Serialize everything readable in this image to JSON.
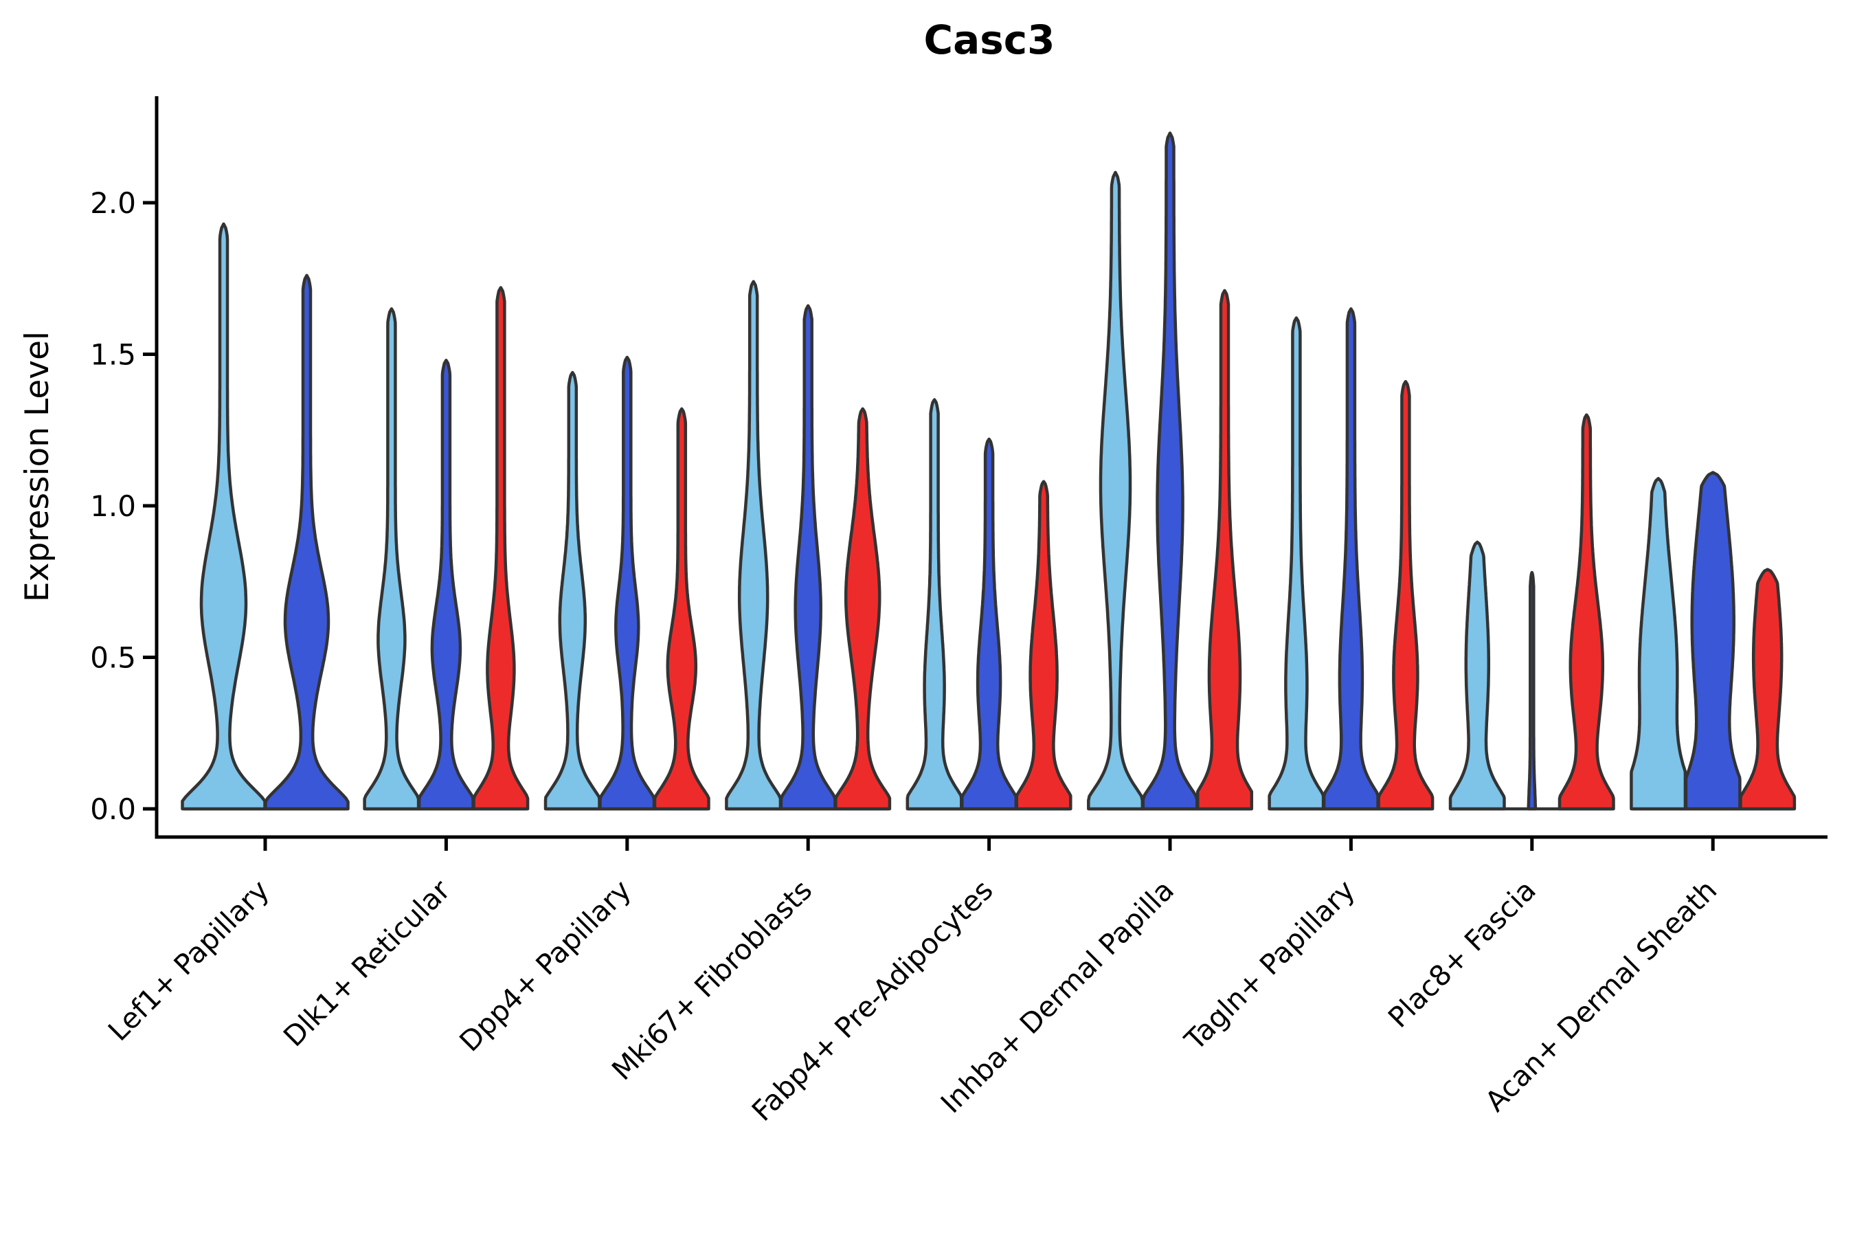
{
  "title": "Casc3",
  "chart_data": {
    "type": "violin",
    "title": "Casc3",
    "xlabel": "",
    "ylabel": "Expression Level",
    "ylim": [
      0,
      2.36
    ],
    "yticks": [
      0.0,
      0.5,
      1.0,
      1.5,
      2.0
    ],
    "ytick_labels": [
      "0.0",
      "0.5",
      "1.0",
      "1.5",
      "2.0"
    ],
    "grid": false,
    "legend_position": "none",
    "categories": [
      "Lef1+ Papillary",
      "Dlk1+ Reticular",
      "Dpp4+ Papillary",
      "Mki67+ Fibroblasts",
      "Fabp4+ Pre-Adipocytes",
      "Inhba+ Dermal Papilla",
      "Tagln+ Papillary",
      "Plac8+ Fascia",
      "Acan+ Dermal Sheath"
    ],
    "splits": [
      {
        "name": "light-blue-split",
        "color": "#7EC3E8"
      },
      {
        "name": "dark-blue-split",
        "color": "#3A57D8"
      },
      {
        "name": "red-split",
        "color": "#EE2B2B"
      }
    ],
    "outline_color": "#333333",
    "axis_color": "#000000",
    "violins": [
      {
        "category": "Lef1+ Papillary",
        "cells": [
          {
            "split": 0,
            "max": 1.93,
            "bulge_center": 0.68,
            "bulge_halfwidth": 27,
            "bulge_spread": 0.2,
            "base_halfwidth": 60
          },
          {
            "split": 1,
            "max": 1.76,
            "bulge_center": 0.62,
            "bulge_halfwidth": 26,
            "bulge_spread": 0.17,
            "base_halfwidth": 60
          }
        ]
      },
      {
        "category": "Dlk1+ Reticular",
        "cells": [
          {
            "split": 0,
            "max": 1.65,
            "bulge_center": 0.56,
            "bulge_halfwidth": 14,
            "bulge_spread": 0.15,
            "base_halfwidth": 40
          },
          {
            "split": 1,
            "max": 1.48,
            "bulge_center": 0.53,
            "bulge_halfwidth": 15,
            "bulge_spread": 0.14,
            "base_halfwidth": 40
          },
          {
            "split": 2,
            "max": 1.72,
            "bulge_center": 0.46,
            "bulge_halfwidth": 14,
            "bulge_spread": 0.16,
            "base_halfwidth": 40
          }
        ]
      },
      {
        "category": "Dpp4+ Papillary",
        "cells": [
          {
            "split": 0,
            "max": 1.44,
            "bulge_center": 0.62,
            "bulge_halfwidth": 13,
            "bulge_spread": 0.16,
            "base_halfwidth": 40
          },
          {
            "split": 1,
            "max": 1.49,
            "bulge_center": 0.6,
            "bulge_halfwidth": 11,
            "bulge_spread": 0.13,
            "base_halfwidth": 40
          },
          {
            "split": 2,
            "max": 1.32,
            "bulge_center": 0.47,
            "bulge_halfwidth": 15,
            "bulge_spread": 0.13,
            "base_halfwidth": 40
          }
        ]
      },
      {
        "category": "Mki67+ Fibroblasts",
        "cells": [
          {
            "split": 0,
            "max": 1.74,
            "bulge_center": 0.7,
            "bulge_halfwidth": 15,
            "bulge_spread": 0.22,
            "base_halfwidth": 40
          },
          {
            "split": 1,
            "max": 1.66,
            "bulge_center": 0.66,
            "bulge_halfwidth": 13,
            "bulge_spread": 0.2,
            "base_halfwidth": 40
          },
          {
            "split": 2,
            "max": 1.32,
            "bulge_center": 0.7,
            "bulge_halfwidth": 19,
            "bulge_spread": 0.2,
            "base_halfwidth": 40
          }
        ]
      },
      {
        "category": "Fabp4+ Pre-Adipocytes",
        "cells": [
          {
            "split": 0,
            "max": 1.35,
            "bulge_center": 0.4,
            "bulge_halfwidth": 9,
            "bulge_spread": 0.18,
            "base_halfwidth": 40
          },
          {
            "split": 1,
            "max": 1.22,
            "bulge_center": 0.42,
            "bulge_halfwidth": 11,
            "bulge_spread": 0.18,
            "base_halfwidth": 40
          },
          {
            "split": 2,
            "max": 1.08,
            "bulge_center": 0.44,
            "bulge_halfwidth": 14,
            "bulge_spread": 0.2,
            "base_halfwidth": 40
          }
        ]
      },
      {
        "category": "Inhba+ Dermal Papilla",
        "cells": [
          {
            "split": 0,
            "max": 2.1,
            "bulge_center": 1.07,
            "bulge_halfwidth": 16,
            "bulge_spread": 0.3,
            "base_halfwidth": 40
          },
          {
            "split": 1,
            "max": 2.23,
            "bulge_center": 1.0,
            "bulge_halfwidth": 13,
            "bulge_spread": 0.32,
            "base_halfwidth": 40
          },
          {
            "split": 2,
            "max": 1.71,
            "bulge_center": 0.44,
            "bulge_halfwidth": 17,
            "bulge_spread": 0.26,
            "base_halfwidth": 40
          }
        ]
      },
      {
        "category": "Tagln+ Papillary",
        "cells": [
          {
            "split": 0,
            "max": 1.62,
            "bulge_center": 0.41,
            "bulge_halfwidth": 10,
            "bulge_spread": 0.22,
            "base_halfwidth": 40
          },
          {
            "split": 1,
            "max": 1.65,
            "bulge_center": 0.43,
            "bulge_halfwidth": 11,
            "bulge_spread": 0.24,
            "base_halfwidth": 40
          },
          {
            "split": 2,
            "max": 1.41,
            "bulge_center": 0.44,
            "bulge_halfwidth": 12,
            "bulge_spread": 0.19,
            "base_halfwidth": 40
          }
        ]
      },
      {
        "category": "Plac8+ Fascia",
        "cells": [
          {
            "split": 0,
            "max": 0.88,
            "bulge_center": 0.48,
            "bulge_halfwidth": 11,
            "bulge_spread": 0.24,
            "base_halfwidth": 38
          },
          {
            "split": 1,
            "max": 0.78,
            "bulge_center": 0.4,
            "bulge_halfwidth": 0,
            "bulge_spread": 0.2,
            "base_halfwidth": 2.5,
            "stem_halfwidth": 2.5
          },
          {
            "split": 2,
            "max": 1.3,
            "bulge_center": 0.47,
            "bulge_halfwidth": 18,
            "bulge_spread": 0.21,
            "base_halfwidth": 38
          }
        ]
      },
      {
        "category": "Acan+ Dermal Sheath",
        "cells": [
          {
            "split": 0,
            "max": 1.09,
            "bulge_center": 0.45,
            "bulge_halfwidth": 21,
            "bulge_spread": 0.3,
            "base_halfwidth": 40,
            "stem_halfwidth": 6.5,
            "base_spread": 0.16
          },
          {
            "split": 1,
            "max": 1.11,
            "bulge_center": 0.62,
            "bulge_halfwidth": 24,
            "bulge_spread": 0.34,
            "base_halfwidth": 40,
            "stem_halfwidth": 6.5,
            "base_spread": 0.16
          },
          {
            "split": 2,
            "max": 0.79,
            "bulge_center": 0.5,
            "bulge_halfwidth": 15,
            "bulge_spread": 0.24,
            "base_halfwidth": 38
          }
        ]
      }
    ]
  }
}
